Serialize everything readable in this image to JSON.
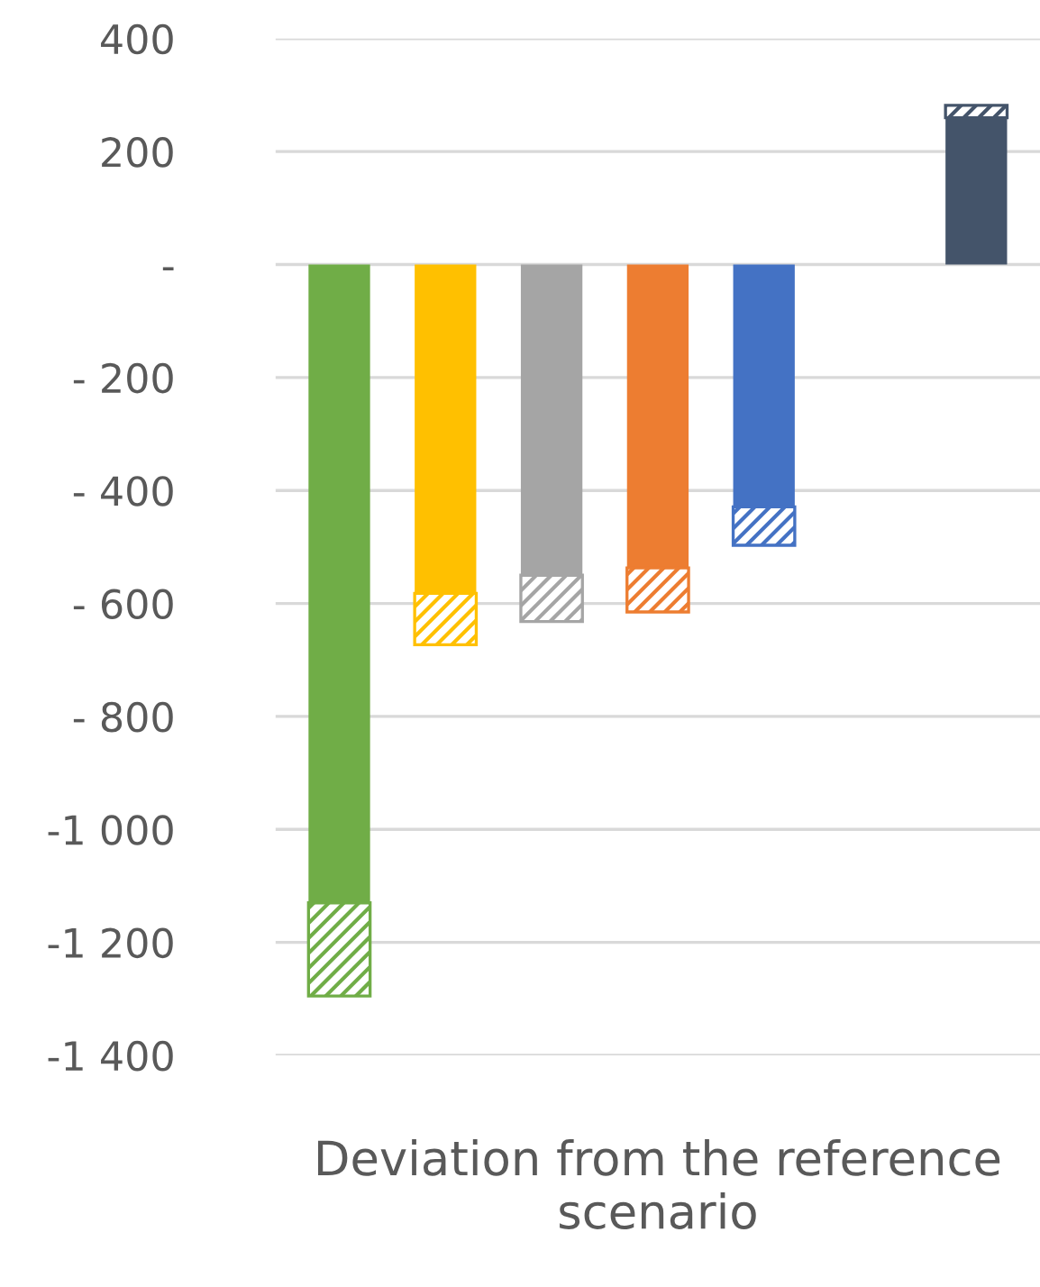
{
  "chart_data": {
    "type": "bar",
    "stacked": true,
    "xlabel": "Deviation from the reference scenario",
    "categories": [
      null,
      null,
      null,
      null,
      null,
      null,
      null
    ],
    "series": [
      {
        "colors": [
          "#70ad47",
          "#ffc000",
          "#a5a5a5",
          "#ed7d31",
          "#4472c4",
          null,
          "#44546a"
        ],
        "values": [
          -1130,
          -582,
          -550,
          -537,
          -429,
          null,
          260
        ]
      },
      {
        "colors": [
          "#70ad47",
          "#ffc000",
          "#a5a5a5",
          "#ed7d31",
          "#4472c4",
          null,
          "#44546a"
        ],
        "values": [
          -165,
          -91,
          -82,
          -78,
          -68,
          null,
          22
        ]
      }
    ],
    "ylim": [
      -1400,
      400
    ],
    "yticks": [
      400,
      200,
      {
        "value": 0,
        "label": "-"
      },
      {
        "value": -200,
        "label": "- 200"
      },
      {
        "value": -400,
        "label": "- 400"
      },
      {
        "value": -600,
        "label": "- 600"
      },
      {
        "value": -800,
        "label": "- 800"
      },
      {
        "value": -1000,
        "label": "-1 000"
      },
      {
        "value": -1200,
        "label": "-1 200"
      },
      {
        "value": -1400,
        "label": "-1 400"
      }
    ],
    "grid": "y",
    "legend": false
  }
}
